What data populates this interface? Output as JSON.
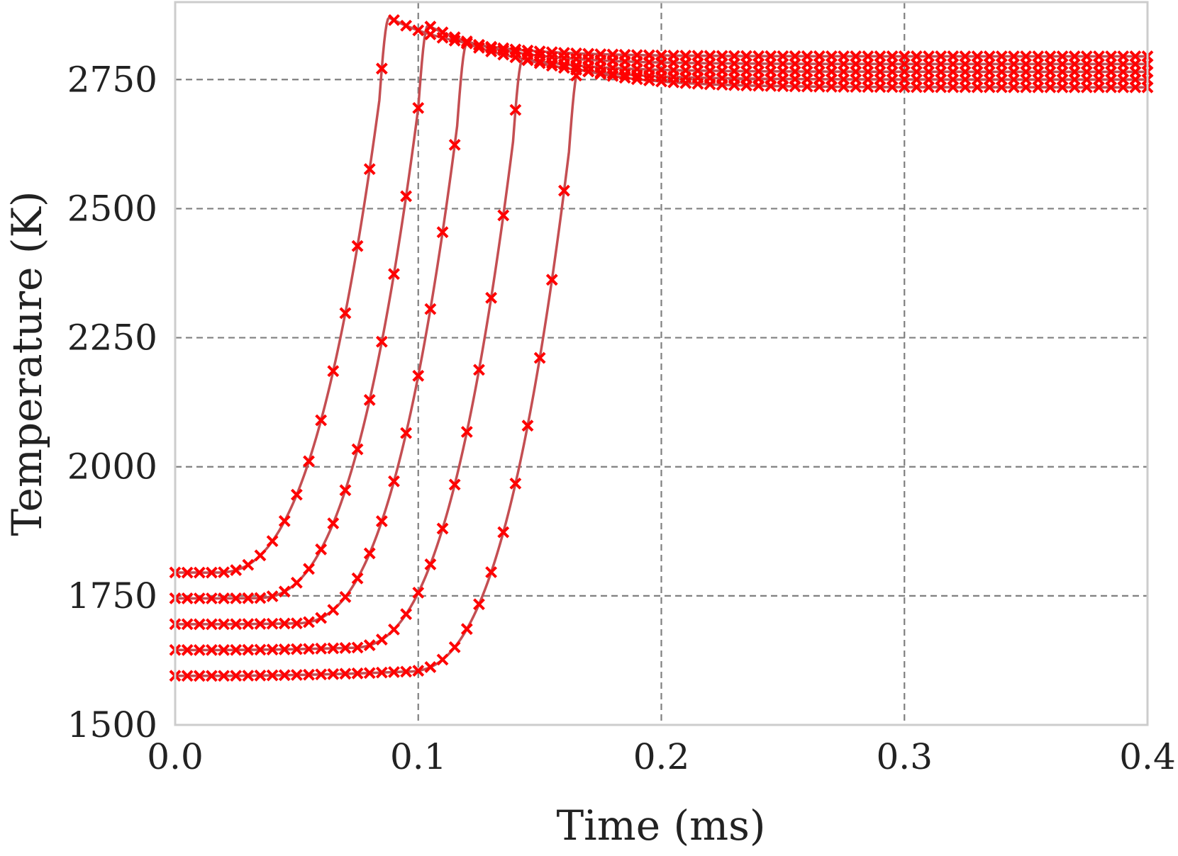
{
  "chart_data": {
    "type": "line",
    "xlabel": "Time (ms)",
    "ylabel": "Temperature (K)",
    "xlim": [
      0.0,
      0.4
    ],
    "ylim": [
      1500,
      2900
    ],
    "xticks": [
      "0.0",
      "0.1",
      "0.2",
      "0.3",
      "0.4"
    ],
    "yticks": [
      "1500",
      "1750",
      "2000",
      "2250",
      "2500",
      "2750"
    ],
    "xtick_values": [
      0.0,
      0.1,
      0.2,
      0.3,
      0.4
    ],
    "ytick_values": [
      1500,
      1750,
      2000,
      2250,
      2500,
      2750
    ],
    "grid": true,
    "line_color": "#c44e52",
    "marker_color": "#ff0000",
    "marker": "x",
    "series": [
      {
        "T0": 1600,
        "t_ign": 0.166,
        "T_peak": 2770,
        "T_eq": 2735
      },
      {
        "T0": 1650,
        "t_ign": 0.143,
        "T_peak": 2790,
        "T_eq": 2750
      },
      {
        "T0": 1700,
        "t_ign": 0.12,
        "T_peak": 2820,
        "T_eq": 2765
      },
      {
        "T0": 1750,
        "t_ign": 0.104,
        "T_peak": 2855,
        "T_eq": 2780
      },
      {
        "T0": 1800,
        "t_ign": 0.088,
        "T_peak": 2870,
        "T_eq": 2795
      }
    ]
  }
}
